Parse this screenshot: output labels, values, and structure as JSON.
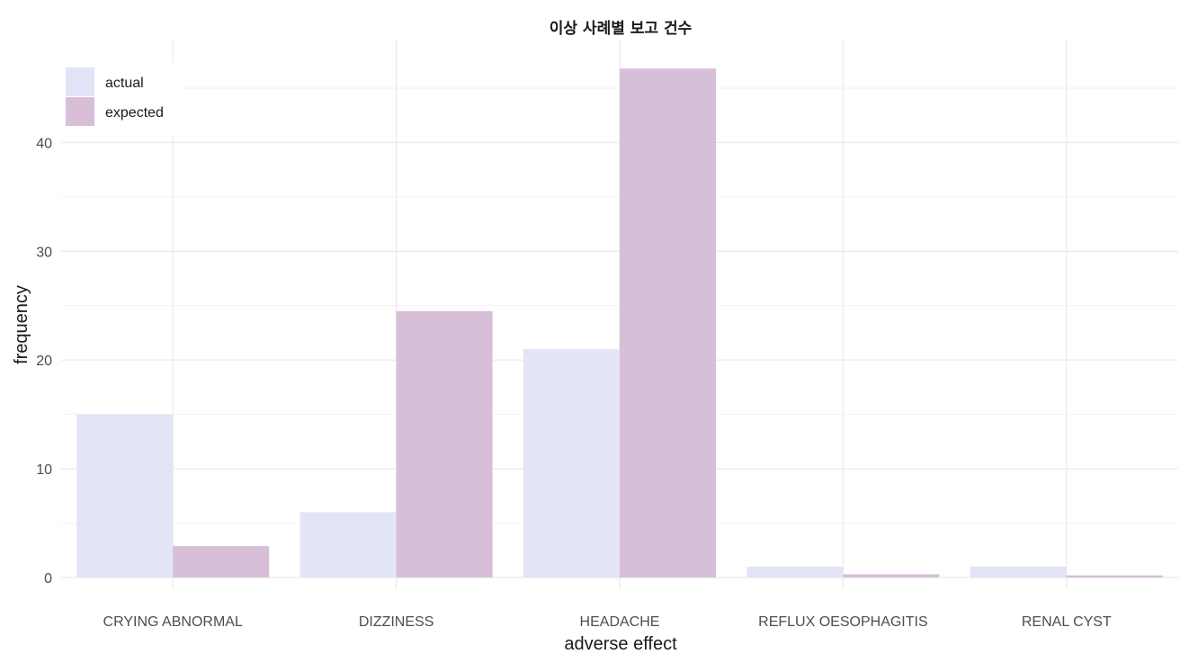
{
  "chart_data": {
    "type": "bar",
    "title": "이상 사례별 보고 건수",
    "xlabel": "adverse effect",
    "ylabel": "frequency",
    "categories": [
      "CRYING ABNORMAL",
      "DIZZINESS",
      "HEADACHE",
      "REFLUX OESOPHAGITIS",
      "RENAL CYST"
    ],
    "series": [
      {
        "name": "actual",
        "color": "#e4e4f7",
        "values": [
          15,
          6,
          21,
          1,
          1
        ]
      },
      {
        "name": "expected",
        "color": "#d8bfd8",
        "values": [
          2.9,
          24.5,
          46.8,
          0.3,
          0.2
        ]
      }
    ],
    "ylim": [
      0,
      46.8
    ],
    "yticks": [
      0,
      10,
      20,
      30,
      40
    ],
    "grid": true,
    "legend_position": "top-left"
  }
}
